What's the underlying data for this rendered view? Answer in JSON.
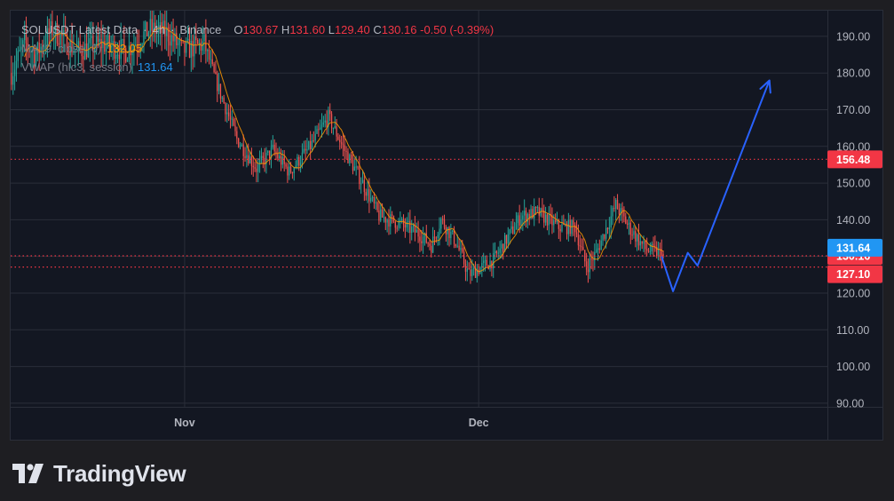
{
  "legend": {
    "symbol": "SOLUSDT Latest Data",
    "sep": "·",
    "timeframe": "4h",
    "exchange": "Binance",
    "open_label": "O",
    "open": "130.67",
    "high_label": "H",
    "high": "131.60",
    "low_label": "L",
    "low": "129.40",
    "close_label": "C",
    "close": "130.16",
    "change": "-0.50 (-0.39%)",
    "ma_label": "MA (9, close, 0)",
    "ma_value": "132.05",
    "vwap_label": "VWAP (hlc3, session)",
    "vwap_value": "131.64"
  },
  "brand": {
    "name": "TradingView"
  },
  "colors": {
    "background": "#131722",
    "grid": "#2a2e39",
    "up": "#26a69a",
    "down": "#ef5350",
    "ma": "#ff9800",
    "vwap": "#2196f3",
    "level": "#f23645",
    "projection": "#2962ff",
    "axis_text": "#b2b5be"
  },
  "chart_data": {
    "type": "candlestick",
    "symbol": "SOLUSDT",
    "timeframe": "4h",
    "y_axis": {
      "range": [
        89,
        197
      ],
      "ticks": [
        90,
        100,
        110,
        120,
        130,
        140,
        150,
        160,
        170,
        180,
        190
      ],
      "tick_labels": [
        "90.00",
        "100.00",
        "110.00",
        "120.00",
        "130.00",
        "140.00",
        "150.00",
        "160.00",
        "170.00",
        "180.00",
        "190.00"
      ]
    },
    "x_axis": {
      "labels": [
        {
          "label": "Nov",
          "bar_index": 106
        },
        {
          "label": "Dec",
          "bar_index": 286
        }
      ]
    },
    "bars_total_axis": 500,
    "candle_count": 400,
    "price_path": [
      {
        "i": 0,
        "p": 180
      },
      {
        "i": 8,
        "p": 188
      },
      {
        "i": 15,
        "p": 185
      },
      {
        "i": 25,
        "p": 192
      },
      {
        "i": 40,
        "p": 186
      },
      {
        "i": 55,
        "p": 188
      },
      {
        "i": 70,
        "p": 186
      },
      {
        "i": 85,
        "p": 192
      },
      {
        "i": 95,
        "p": 191
      },
      {
        "i": 105,
        "p": 186
      },
      {
        "i": 118,
        "p": 188
      },
      {
        "i": 125,
        "p": 178
      },
      {
        "i": 138,
        "p": 162
      },
      {
        "i": 150,
        "p": 154
      },
      {
        "i": 160,
        "p": 159
      },
      {
        "i": 170,
        "p": 153
      },
      {
        "i": 183,
        "p": 160
      },
      {
        "i": 194,
        "p": 168
      },
      {
        "i": 205,
        "p": 158
      },
      {
        "i": 215,
        "p": 150
      },
      {
        "i": 225,
        "p": 141
      },
      {
        "i": 238,
        "p": 139
      },
      {
        "i": 250,
        "p": 136
      },
      {
        "i": 257,
        "p": 133
      },
      {
        "i": 263,
        "p": 140
      },
      {
        "i": 272,
        "p": 134
      },
      {
        "i": 280,
        "p": 125
      },
      {
        "i": 295,
        "p": 129
      },
      {
        "i": 305,
        "p": 136
      },
      {
        "i": 312,
        "p": 141
      },
      {
        "i": 322,
        "p": 142
      },
      {
        "i": 335,
        "p": 138
      },
      {
        "i": 345,
        "p": 138
      },
      {
        "i": 352,
        "p": 127
      },
      {
        "i": 358,
        "p": 131
      },
      {
        "i": 370,
        "p": 144
      },
      {
        "i": 378,
        "p": 138
      },
      {
        "i": 388,
        "p": 132
      },
      {
        "i": 396,
        "p": 131
      },
      {
        "i": 400,
        "p": 130.16
      }
    ],
    "last_candle": {
      "open": 130.67,
      "high": 131.6,
      "low": 129.4,
      "close": 130.16
    },
    "price_levels": [
      {
        "value": 156.48,
        "label": "156.48",
        "style": "dotted",
        "color": "#f23645"
      },
      {
        "value": 130.16,
        "label": "130.16",
        "style": "dotted",
        "color": "#f23645"
      },
      {
        "value": 127.1,
        "label": "127.10",
        "style": "dotted",
        "color": "#f23645"
      }
    ],
    "vwap_marker": {
      "value": 131.64,
      "label": "131.64",
      "color": "#2196f3"
    },
    "projection": {
      "color": "#2962ff",
      "points": [
        {
          "i": 398,
          "p": 130
        },
        {
          "i": 405,
          "p": 120.5
        },
        {
          "i": 414,
          "p": 131
        },
        {
          "i": 420,
          "p": 127.5
        },
        {
          "i": 464,
          "p": 178
        }
      ],
      "arrow": true
    }
  }
}
